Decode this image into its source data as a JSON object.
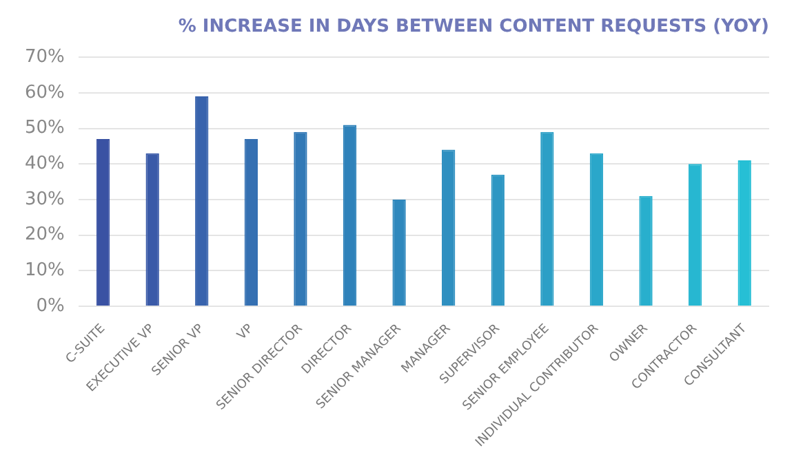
{
  "chart_data": {
    "type": "bar",
    "title": "% INCREASE IN DAYS BETWEEN CONTENT REQUESTS (YOY)",
    "categories": [
      "C-SUITE",
      "EXECUTIVE VP",
      "SENIOR VP",
      "VP",
      "SENIOR DIRECTOR",
      "DIRECTOR",
      "SENIOR MANAGER",
      "MANAGER",
      "SUPERVISOR",
      "SENIOR EMPLOYEE",
      "INDIVIDUAL CONTRIBUTOR",
      "OWNER",
      "CONTRACTOR",
      "CONSULTANT"
    ],
    "values": [
      47,
      43,
      59,
      47,
      49,
      51,
      30,
      44,
      37,
      49,
      43,
      31,
      40,
      41
    ],
    "colors": [
      "#3a52a3",
      "#3a5aa8",
      "#3863ad",
      "#3570b2",
      "#3279b6",
      "#2f82ba",
      "#2f88bd",
      "#2f8fc0",
      "#2e97c3",
      "#2c9fc6",
      "#2aa7ca",
      "#28afcd",
      "#27b7d1",
      "#26bfd5"
    ],
    "ylim": [
      0,
      70
    ],
    "yticks": [
      {
        "value": 0,
        "label": "0%"
      },
      {
        "value": 10,
        "label": "10%"
      },
      {
        "value": 20,
        "label": "20%"
      },
      {
        "value": 30,
        "label": "30%"
      },
      {
        "value": 40,
        "label": "40%"
      },
      {
        "value": 50,
        "label": "50%"
      },
      {
        "value": 60,
        "label": "60%"
      },
      {
        "value": 70,
        "label": "70%"
      }
    ],
    "grid": "y"
  }
}
